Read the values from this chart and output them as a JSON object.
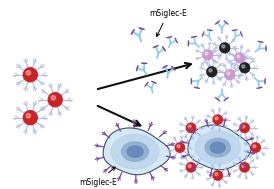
{
  "background_color": "#ffffff",
  "np_core_red": "#cc2222",
  "np_core_pink": "#cc99cc",
  "np_core_dark": "#222222",
  "spike_color": "#aabbee",
  "spike_color2": "#8899cc",
  "ab_light": "#88ccee",
  "ab_dark": "#7744aa",
  "cell_body": "#d0e8f8",
  "cell_inner": "#b8d0e8",
  "cell_nucleus_outer": "#88aacc",
  "cell_nucleus_inner": "#6688bb",
  "cell_border": "#334455",
  "arrow_color": "#111111",
  "label_top": "mSiglec-E",
  "label_bottom": "mSiglec-E",
  "label_fs": 5.5,
  "figsize": [
    2.74,
    1.89
  ],
  "dpi": 100
}
